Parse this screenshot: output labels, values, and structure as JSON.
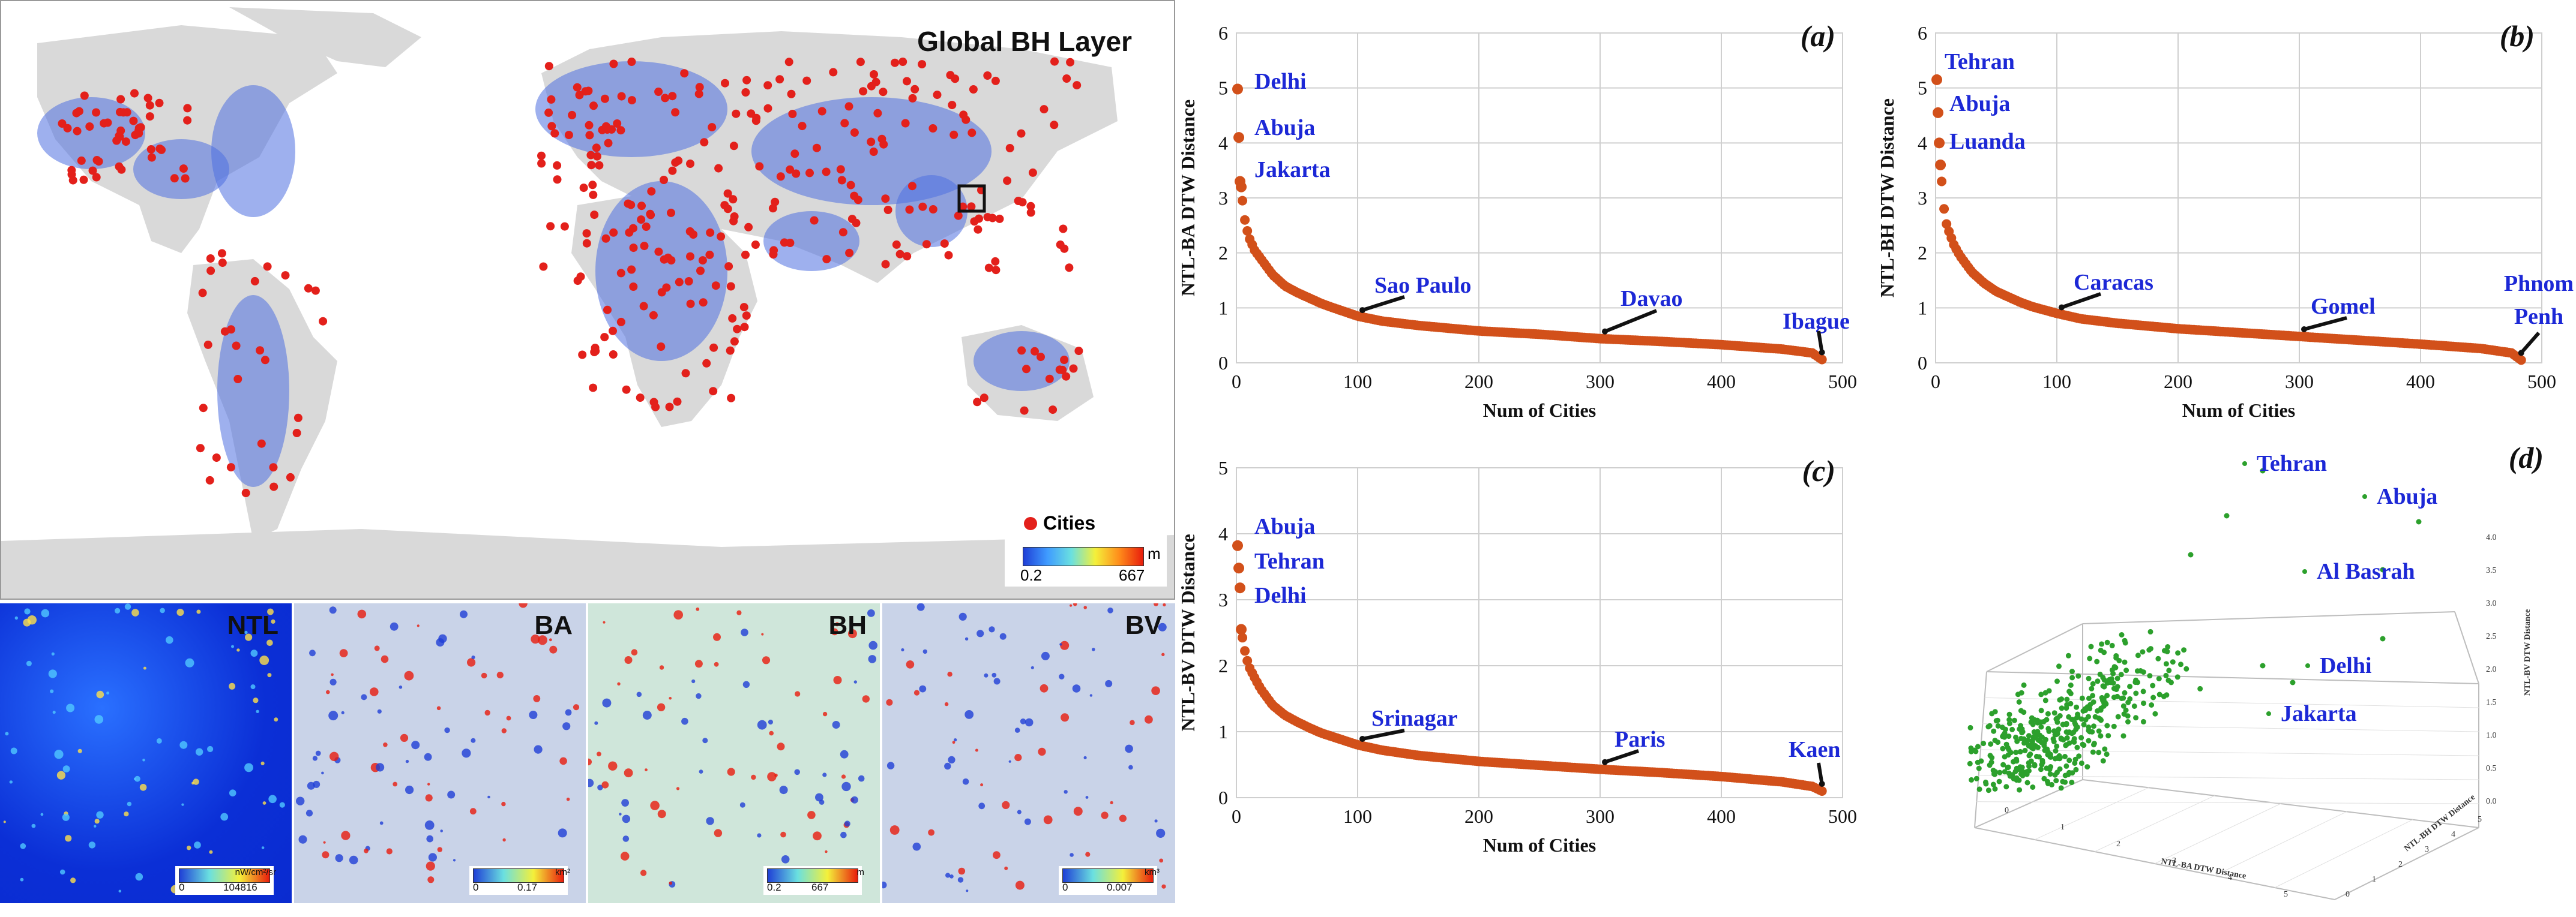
{
  "map": {
    "title": "Global BH Layer",
    "legend_cities": "Cities",
    "scale_unit": "m",
    "scale_min": "0.2",
    "scale_max": "667",
    "city_color": "#e3201b",
    "land_color": "#d9d9d9"
  },
  "tiles": [
    {
      "label": "NTL",
      "unit": "nW/cm²/sr",
      "min": "0",
      "max": "104816"
    },
    {
      "label": "BA",
      "unit": "km²",
      "min": "0",
      "max": "0.17"
    },
    {
      "label": "BH",
      "unit": "m",
      "min": "0.2",
      "max": "667"
    },
    {
      "label": "BV",
      "unit": "km³",
      "min": "0",
      "max": "0.007"
    }
  ],
  "chart_data": [
    {
      "type": "scatter",
      "panel": "(a)",
      "xlabel": "Num of Cities",
      "ylabel": "NTL-BA DTW Distance",
      "xlim": [
        0,
        500
      ],
      "ylim": [
        0,
        6
      ],
      "xticks": [
        0,
        100,
        200,
        300,
        400,
        500
      ],
      "yticks": [
        0,
        1,
        2,
        3,
        4,
        5,
        6
      ],
      "grid": true,
      "marker_color": "#d2501a",
      "n_points": 483,
      "points": [
        [
          1,
          4.98
        ],
        [
          2,
          4.1
        ],
        [
          3,
          3.3
        ],
        [
          4,
          3.2
        ],
        [
          6,
          2.7
        ],
        [
          8,
          2.5
        ],
        [
          10,
          2.3
        ],
        [
          15,
          2.05
        ],
        [
          20,
          1.9
        ],
        [
          30,
          1.6
        ],
        [
          40,
          1.4
        ],
        [
          50,
          1.28
        ],
        [
          60,
          1.18
        ],
        [
          70,
          1.08
        ],
        [
          80,
          1.0
        ],
        [
          100,
          0.85
        ],
        [
          120,
          0.76
        ],
        [
          150,
          0.68
        ],
        [
          200,
          0.58
        ],
        [
          250,
          0.52
        ],
        [
          300,
          0.44
        ],
        [
          350,
          0.39
        ],
        [
          400,
          0.33
        ],
        [
          450,
          0.25
        ],
        [
          475,
          0.18
        ],
        [
          483,
          0.06
        ]
      ],
      "annotations": [
        {
          "text": "Delhi",
          "x": 1,
          "y": 4.98
        },
        {
          "text": "Abuja",
          "x": 2,
          "y": 4.1
        },
        {
          "text": "Jakarta",
          "x": 3,
          "y": 3.3
        },
        {
          "text": "Sao Paulo",
          "x": 100,
          "y": 0.85
        },
        {
          "text": "Davao",
          "x": 300,
          "y": 0.44
        },
        {
          "text": "Ibague",
          "x": 483,
          "y": 0.06
        }
      ]
    },
    {
      "type": "scatter",
      "panel": "(b)",
      "xlabel": "Num of Cities",
      "ylabel": "NTL-BH DTW Distance",
      "xlim": [
        0,
        500
      ],
      "ylim": [
        0,
        6
      ],
      "xticks": [
        0,
        100,
        200,
        300,
        400,
        500
      ],
      "yticks": [
        0,
        1,
        2,
        3,
        4,
        5,
        6
      ],
      "grid": true,
      "marker_color": "#d2501a",
      "n_points": 483,
      "points": [
        [
          1,
          5.15
        ],
        [
          2,
          4.55
        ],
        [
          3,
          4.0
        ],
        [
          4,
          3.6
        ],
        [
          6,
          3.0
        ],
        [
          8,
          2.6
        ],
        [
          10,
          2.45
        ],
        [
          15,
          2.15
        ],
        [
          20,
          1.95
        ],
        [
          30,
          1.65
        ],
        [
          40,
          1.45
        ],
        [
          50,
          1.3
        ],
        [
          60,
          1.2
        ],
        [
          70,
          1.1
        ],
        [
          80,
          1.02
        ],
        [
          100,
          0.9
        ],
        [
          120,
          0.8
        ],
        [
          150,
          0.72
        ],
        [
          200,
          0.62
        ],
        [
          250,
          0.55
        ],
        [
          300,
          0.48
        ],
        [
          350,
          0.41
        ],
        [
          400,
          0.34
        ],
        [
          450,
          0.26
        ],
        [
          475,
          0.18
        ],
        [
          483,
          0.05
        ]
      ],
      "annotations": [
        {
          "text": "Tehran",
          "x": 1,
          "y": 5.15
        },
        {
          "text": "Abuja",
          "x": 2,
          "y": 4.55
        },
        {
          "text": "Luanda",
          "x": 3,
          "y": 4.0
        },
        {
          "text": "Caracas",
          "x": 100,
          "y": 0.9
        },
        {
          "text": "Gomel",
          "x": 300,
          "y": 0.48
        },
        {
          "text": "Phnom",
          "x": 483,
          "y": 0.05
        },
        {
          "text": "Penh",
          "x": 483,
          "y": 0.05
        }
      ]
    },
    {
      "type": "scatter",
      "panel": "(c)",
      "xlabel": "Num of Cities",
      "ylabel": "NTL-BV DTW Distance",
      "xlim": [
        0,
        500
      ],
      "ylim": [
        0,
        5
      ],
      "xticks": [
        0,
        100,
        200,
        300,
        400,
        500
      ],
      "yticks": [
        0,
        1,
        2,
        3,
        4,
        5
      ],
      "grid": true,
      "marker_color": "#d2501a",
      "n_points": 483,
      "points": [
        [
          1,
          3.82
        ],
        [
          2,
          3.48
        ],
        [
          3,
          3.18
        ],
        [
          4,
          2.55
        ],
        [
          6,
          2.3
        ],
        [
          8,
          2.15
        ],
        [
          10,
          2.0
        ],
        [
          15,
          1.82
        ],
        [
          20,
          1.65
        ],
        [
          30,
          1.4
        ],
        [
          40,
          1.25
        ],
        [
          50,
          1.15
        ],
        [
          60,
          1.06
        ],
        [
          70,
          0.98
        ],
        [
          80,
          0.92
        ],
        [
          100,
          0.8
        ],
        [
          120,
          0.72
        ],
        [
          150,
          0.64
        ],
        [
          200,
          0.55
        ],
        [
          250,
          0.49
        ],
        [
          300,
          0.43
        ],
        [
          350,
          0.38
        ],
        [
          400,
          0.32
        ],
        [
          450,
          0.24
        ],
        [
          475,
          0.17
        ],
        [
          483,
          0.1
        ]
      ],
      "annotations": [
        {
          "text": "Abuja",
          "x": 1,
          "y": 3.82
        },
        {
          "text": "Tehran",
          "x": 2,
          "y": 3.48
        },
        {
          "text": "Delhi",
          "x": 3,
          "y": 3.18
        },
        {
          "text": "Srinagar",
          "x": 100,
          "y": 0.8
        },
        {
          "text": "Paris",
          "x": 300,
          "y": 0.43
        },
        {
          "text": "Kaen",
          "x": 483,
          "y": 0.1
        }
      ]
    },
    {
      "type": "scatter",
      "panel": "(d)",
      "xlabel": "NTL-BA DTW Distance",
      "ylabel": "NTL-BH DTW Distance",
      "zlabel": "NTL-BV DTW Distance",
      "xticks": [
        0,
        1,
        2,
        3,
        4,
        5
      ],
      "yticks": [
        0,
        1,
        2,
        3,
        4,
        5
      ],
      "zticks": [
        "0.0",
        "0.5",
        "1.0",
        "1.5",
        "2.0",
        "2.5",
        "3.0",
        "3.5",
        "4.0"
      ],
      "marker_color": "#2ca02c",
      "points": [
        [
          4.1,
          4.55,
          3.82
        ],
        [
          4.98,
          3.2,
          3.18
        ],
        [
          3.3,
          2.9,
          2.8
        ],
        [
          3.6,
          5.15,
          3.48
        ],
        [
          2.8,
          3.0,
          2.3
        ],
        [
          0.9,
          0.8,
          0.7
        ],
        [
          1.2,
          1.1,
          1.0
        ],
        [
          1.5,
          1.3,
          1.2
        ],
        [
          2.0,
          1.8,
          1.6
        ],
        [
          0.6,
          0.5,
          0.4
        ]
      ],
      "annotations": [
        {
          "text": "Tehran"
        },
        {
          "text": "Abuja"
        },
        {
          "text": "Al Basrah"
        },
        {
          "text": "Delhi"
        },
        {
          "text": "Jakarta"
        }
      ]
    }
  ]
}
